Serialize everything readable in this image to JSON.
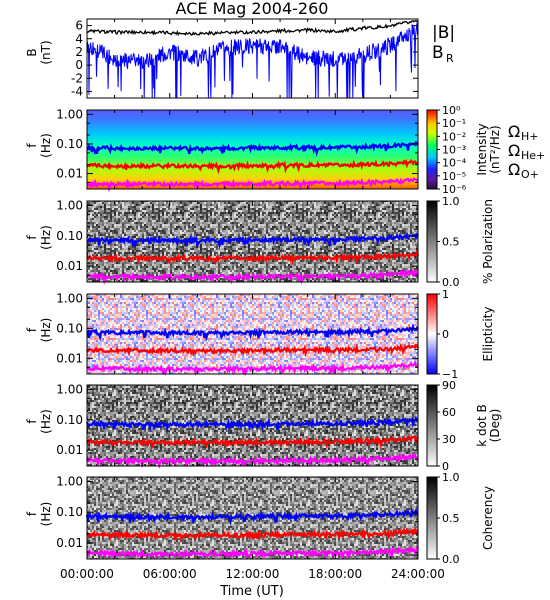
{
  "title": "ACE Mag 2004-260",
  "xaxis": {
    "label": "Time (UT)",
    "ticks": [
      "00:00:00",
      "06:00:00",
      "12:00:00",
      "18:00:00",
      "24:00:00"
    ],
    "range_hours": [
      0,
      24
    ]
  },
  "colors": {
    "btotal": "#000000",
    "br": "#0000ff",
    "h_plus": "#0000ff",
    "he_plus": "#ff0000",
    "o_plus": "#ff00ff"
  },
  "legend": {
    "btotal": "|B|",
    "br_main": "B",
    "br_sub": "R",
    "omega": "Ω",
    "h_sub": "H+",
    "he_sub": "He+",
    "o_sub": "O+"
  },
  "panels": {
    "b": {
      "ylabel": "B",
      "yunit": "(nT)",
      "yticks": [
        "6",
        "4",
        "2",
        "0",
        "-2",
        "-4"
      ]
    },
    "intensity": {
      "ylabel": "f",
      "yunit": "(Hz)",
      "yticks": [
        "1.00",
        "0.10",
        "0.01"
      ],
      "cb_label1": "Intensity",
      "cb_label2": "(nT²/Hz)",
      "cb_ticks": [
        "10⁰",
        "10⁻¹",
        "10⁻²",
        "10⁻³",
        "10⁻⁴",
        "10⁻⁵",
        "10⁻⁶"
      ]
    },
    "polarization": {
      "ylabel": "f",
      "yunit": "(Hz)",
      "yticks": [
        "1.00",
        "0.10",
        "0.01"
      ],
      "cb_label": "% Polarization",
      "cb_ticks": [
        "1.0",
        "0.5",
        "0.0"
      ]
    },
    "ellipticity": {
      "ylabel": "f",
      "yunit": "(Hz)",
      "yticks": [
        "1.00",
        "0.10",
        "0.01"
      ],
      "cb_label": "Ellipticity",
      "cb_ticks": [
        "1",
        "0",
        "−1"
      ]
    },
    "kdotb": {
      "ylabel": "f",
      "yunit": "(Hz)",
      "yticks": [
        "1.00",
        "0.10",
        "0.01"
      ],
      "cb_label1": "k dot B",
      "cb_label2": "(Deg)",
      "cb_ticks": [
        "90",
        "60",
        "30",
        "0"
      ]
    },
    "coherency": {
      "ylabel": "f",
      "yunit": "(Hz)",
      "yticks": [
        "1.00",
        "0.10",
        "0.01"
      ],
      "cb_label": "Coherency",
      "cb_ticks": [
        "1.0",
        "0.5",
        "0.0"
      ]
    }
  },
  "chart_data": {
    "type": "line",
    "title": "ACE Mag 2004-260",
    "xlabel": "Time (UT)",
    "x_hours": [
      0,
      2,
      4,
      6,
      8,
      10,
      12,
      14,
      16,
      18,
      20,
      22,
      24
    ],
    "series": [
      {
        "name": "|B|",
        "values": [
          5.2,
          5.0,
          5.0,
          4.9,
          4.8,
          4.9,
          5.0,
          5.2,
          5.3,
          5.1,
          5.6,
          5.9,
          6.8
        ]
      },
      {
        "name": "B_R",
        "values": [
          3.0,
          1.0,
          0.5,
          2.0,
          1.0,
          2.5,
          3.0,
          2.8,
          1.0,
          1.0,
          1.5,
          3.0,
          5.5
        ]
      },
      {
        "name": "Ω_H+",
        "values": [
          0.075,
          0.072,
          0.071,
          0.071,
          0.07,
          0.071,
          0.073,
          0.074,
          0.076,
          0.074,
          0.08,
          0.085,
          0.1
        ]
      },
      {
        "name": "Ω_He+",
        "values": [
          0.019,
          0.018,
          0.018,
          0.018,
          0.018,
          0.018,
          0.018,
          0.019,
          0.019,
          0.019,
          0.02,
          0.021,
          0.025
        ]
      },
      {
        "name": "Ω_O+",
        "values": [
          0.0047,
          0.0045,
          0.0044,
          0.0044,
          0.0044,
          0.0044,
          0.0045,
          0.0046,
          0.0047,
          0.0046,
          0.005,
          0.0053,
          0.0063
        ]
      }
    ],
    "panels": [
      {
        "name": "B",
        "ylim": [
          -5,
          7
        ],
        "unit": "nT"
      },
      {
        "name": "Intensity",
        "ylim_hz": [
          0.003,
          1.4
        ],
        "yscale": "log",
        "colorbar": "rainbow",
        "clim": [
          "1e-6",
          "1e0"
        ]
      },
      {
        "name": "% Polarization",
        "ylim_hz": [
          0.003,
          1.4
        ],
        "yscale": "log",
        "colorbar": "grayscale",
        "clim": [
          0,
          1
        ]
      },
      {
        "name": "Ellipticity",
        "ylim_hz": [
          0.003,
          1.4
        ],
        "yscale": "log",
        "colorbar": "blue-white-red",
        "clim": [
          -1,
          1
        ]
      },
      {
        "name": "k dot B",
        "ylim_hz": [
          0.003,
          1.4
        ],
        "yscale": "log",
        "colorbar": "grayscale",
        "clim": [
          0,
          90
        ]
      },
      {
        "name": "Coherency",
        "ylim_hz": [
          0.003,
          1.4
        ],
        "yscale": "log",
        "colorbar": "grayscale",
        "clim": [
          0,
          1
        ]
      }
    ]
  }
}
